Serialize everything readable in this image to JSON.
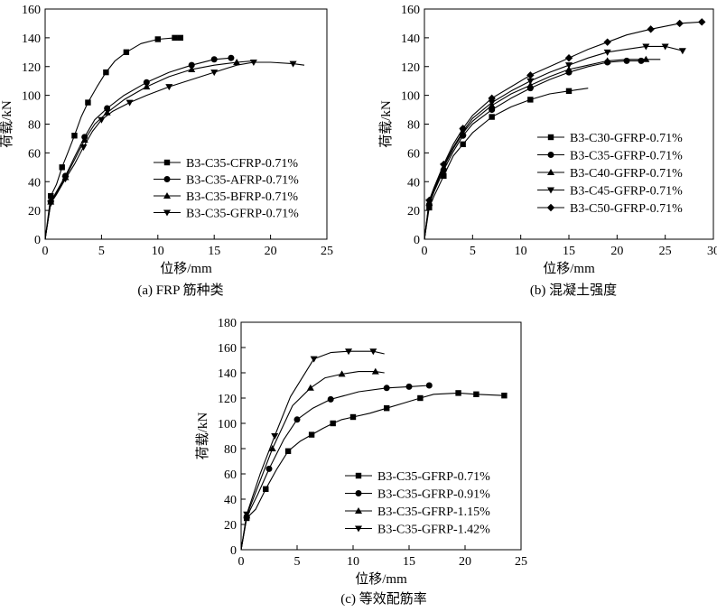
{
  "chart_data": [
    {
      "type": "line",
      "caption": "(a) FRP 筋种类",
      "xlabel": "位移/mm",
      "ylabel": "荷载/kN",
      "xlim": [
        0,
        25
      ],
      "ylim": [
        0,
        160
      ],
      "xticks": [
        0,
        5,
        10,
        15,
        20,
        25
      ],
      "yticks": [
        0,
        20,
        40,
        60,
        80,
        100,
        120,
        140,
        160
      ],
      "legend_position": "bottom-right",
      "series": [
        {
          "name": "B3-C35-CFRP-0.71%",
          "marker": "square",
          "x": [
            0,
            0.5,
            1,
            1.5,
            2,
            2.6,
            3.2,
            3.8,
            4.6,
            5.4,
            6.2,
            7.2,
            8.5,
            10,
            11.5,
            12
          ],
          "y": [
            0,
            30,
            38,
            50,
            60,
            72,
            85,
            95,
            106,
            116,
            124,
            130,
            136,
            139,
            140,
            140
          ]
        },
        {
          "name": "B3-C35-AFRP-0.71%",
          "marker": "circle",
          "x": [
            0,
            0.5,
            1,
            1.8,
            2.6,
            3.5,
            4.4,
            5.5,
            7,
            9,
            11,
            13,
            15,
            16.5
          ],
          "y": [
            0,
            26,
            33,
            44,
            57,
            71,
            83,
            91,
            100,
            109,
            116,
            121,
            125,
            126
          ]
        },
        {
          "name": "B3-C35-BFRP-0.71%",
          "marker": "triangle",
          "x": [
            0,
            0.5,
            1,
            1.8,
            2.6,
            3.5,
            4.4,
            5.5,
            7,
            9,
            11,
            13,
            15,
            17,
            18.5
          ],
          "y": [
            0,
            26,
            32,
            43,
            55,
            69,
            80,
            88,
            97,
            106,
            113,
            118,
            121,
            123,
            124
          ]
        },
        {
          "name": "B3-C35-GFRP-0.71%",
          "marker": "down-triangle",
          "x": [
            0,
            0.5,
            1,
            1.8,
            2.6,
            3.4,
            4.2,
            5,
            6,
            7.5,
            9,
            11,
            13,
            15,
            17,
            18.5,
            20,
            22,
            23
          ],
          "y": [
            0,
            25,
            31,
            42,
            52,
            64,
            75,
            83,
            89,
            95,
            100,
            106,
            111,
            116,
            121,
            123,
            123,
            122,
            121
          ]
        }
      ]
    },
    {
      "type": "line",
      "caption": "(b) 混凝土强度",
      "xlabel": "位移/mm",
      "ylabel": "荷载/kN",
      "xlim": [
        0,
        30
      ],
      "ylim": [
        0,
        160
      ],
      "xticks": [
        0,
        5,
        10,
        15,
        20,
        25,
        30
      ],
      "yticks": [
        0,
        20,
        40,
        60,
        80,
        100,
        120,
        140,
        160
      ],
      "legend_position": "bottom-right",
      "series": [
        {
          "name": "B3-C30-GFRP-0.71%",
          "marker": "square",
          "x": [
            0,
            0.5,
            1,
            2,
            3,
            4,
            5,
            7,
            9,
            11,
            13,
            15,
            17
          ],
          "y": [
            0,
            22,
            30,
            44,
            58,
            66,
            74,
            85,
            92,
            97,
            101,
            103,
            105
          ]
        },
        {
          "name": "B3-C35-GFRP-0.71%",
          "marker": "circle",
          "x": [
            0,
            0.5,
            1,
            2,
            3,
            4,
            5,
            7,
            9,
            11,
            13,
            15,
            17,
            19,
            21,
            22.5
          ],
          "y": [
            0,
            24,
            33,
            48,
            61,
            72,
            80,
            90,
            98,
            105,
            111,
            116,
            120,
            123,
            124,
            124
          ]
        },
        {
          "name": "B3-C40-GFRP-0.71%",
          "marker": "triangle",
          "x": [
            0,
            0.5,
            1,
            2,
            3,
            4,
            5,
            7,
            9,
            11,
            13,
            15,
            17,
            19,
            21,
            23,
            24.5
          ],
          "y": [
            0,
            25,
            34,
            50,
            63,
            74,
            82,
            93,
            101,
            107,
            113,
            118,
            121,
            124,
            125,
            125,
            125
          ]
        },
        {
          "name": "B3-C45-GFRP-0.71%",
          "marker": "down-triangle",
          "x": [
            0,
            0.5,
            1,
            2,
            3,
            4,
            5,
            7,
            9,
            11,
            13,
            15,
            17,
            19,
            21,
            23,
            25,
            26.8
          ],
          "y": [
            0,
            26,
            35,
            51,
            64,
            75,
            84,
            95,
            103,
            110,
            116,
            121,
            126,
            130,
            132,
            134,
            134,
            131
          ]
        },
        {
          "name": "B3-C50-GFRP-0.71%",
          "marker": "diamond",
          "x": [
            0,
            0.5,
            1,
            2,
            3,
            4,
            5,
            7,
            9,
            11,
            13,
            15,
            17,
            19,
            21,
            23.5,
            26.5,
            28.8
          ],
          "y": [
            0,
            27,
            36,
            52,
            66,
            77,
            86,
            98,
            106,
            114,
            120,
            126,
            132,
            137,
            142,
            146,
            150,
            151
          ]
        }
      ]
    },
    {
      "type": "line",
      "caption": "(c) 等效配筋率",
      "xlabel": "位移/mm",
      "ylabel": "荷载/kN",
      "xlim": [
        0,
        25
      ],
      "ylim": [
        0,
        180
      ],
      "xticks": [
        0,
        5,
        10,
        15,
        20,
        25
      ],
      "yticks": [
        0,
        20,
        40,
        60,
        80,
        100,
        120,
        140,
        160,
        180
      ],
      "legend_position": "bottom-right",
      "series": [
        {
          "name": "B3-C35-GFRP-0.71%",
          "marker": "square",
          "x": [
            0,
            0.5,
            1.3,
            2.2,
            3.2,
            4.2,
            5.3,
            6.3,
            7.3,
            8.2,
            9,
            10,
            11.5,
            13,
            14.5,
            16,
            17.2,
            19.4,
            21,
            23.5
          ],
          "y": [
            0,
            25,
            32,
            48,
            64,
            78,
            86,
            91,
            96,
            100,
            103,
            105,
            108,
            112,
            116,
            120,
            123,
            124,
            123,
            122
          ]
        },
        {
          "name": "B3-C35-GFRP-0.91%",
          "marker": "circle",
          "x": [
            0,
            0.5,
            1.5,
            2.5,
            3.8,
            5,
            6.4,
            8,
            10.5,
            13,
            15,
            16.8
          ],
          "y": [
            0,
            26,
            44,
            64,
            87,
            103,
            112,
            119,
            125,
            128,
            129,
            130
          ]
        },
        {
          "name": "B3-C35-GFRP-1.15%",
          "marker": "triangle",
          "x": [
            0,
            0.5,
            1.5,
            2.8,
            4.6,
            6.2,
            7.5,
            9,
            10.5,
            12,
            12.8
          ],
          "y": [
            0,
            27,
            50,
            80,
            114,
            128,
            136,
            139,
            141,
            141,
            140
          ]
        },
        {
          "name": "B3-C35-GFRP-1.42%",
          "marker": "down-triangle",
          "x": [
            0,
            0.5,
            1.7,
            3,
            4.4,
            6.5,
            8,
            9.6,
            11,
            11.8,
            12.8
          ],
          "y": [
            0,
            28,
            60,
            90,
            121,
            151,
            156,
            157,
            157,
            157,
            155
          ]
        }
      ]
    }
  ]
}
